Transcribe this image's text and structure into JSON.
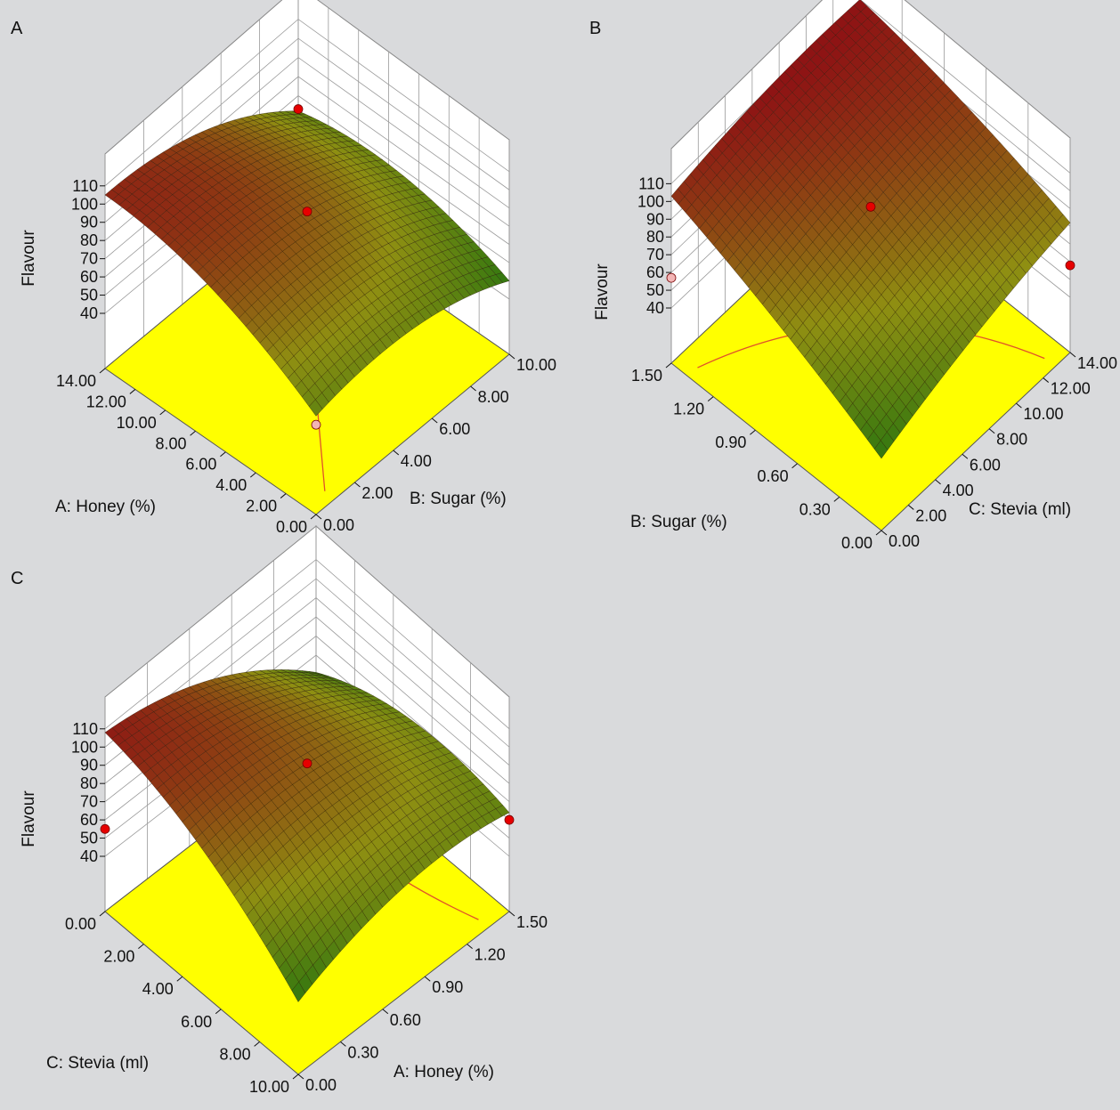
{
  "colors": {
    "background": "#d9dadc",
    "floor": "#ffff00",
    "surface_high": "#8e1414",
    "surface_low": "#0f6e0f",
    "point": "#e60000",
    "contour": "#e0522a"
  },
  "chart_data": [
    {
      "type": "surface3d",
      "panel_label": "A",
      "zlabel": "Flavour",
      "xlabel": "A: Honey (%)",
      "ylabel": "B: Sugar (%)",
      "x_ticks": [
        "0.00",
        "2.00",
        "4.00",
        "6.00",
        "8.00",
        "10.00"
      ],
      "y_ticks": [
        "0.00",
        "2.00",
        "4.00",
        "6.00",
        "8.00",
        "10.00",
        "12.00",
        "14.00"
      ],
      "z_ticks": [
        "40",
        "50",
        "60",
        "70",
        "80",
        "90",
        "100",
        "110"
      ],
      "xlim": [
        0,
        10
      ],
      "ylim": [
        0,
        14
      ],
      "zlim": [
        40,
        110
      ],
      "surface_corners": {
        "x0y0": 65,
        "x10y0": 50,
        "x0y14": 105,
        "x10y14": 62,
        "center": 92
      },
      "design_points": [
        {
          "x": 5,
          "y": 7,
          "z": 92
        },
        {
          "x": 10,
          "y": 14,
          "z": 63
        },
        {
          "x": 0,
          "y": 0,
          "z": 60,
          "hidden": true
        }
      ]
    },
    {
      "type": "surface3d",
      "panel_label": "B",
      "zlabel": "Flavour",
      "xlabel": "B: Sugar (%)",
      "ylabel": "C: Stevia (ml)",
      "x_ticks": [
        "0.00",
        "2.00",
        "4.00",
        "6.00",
        "8.00",
        "10.00",
        "12.00",
        "14.00"
      ],
      "y_ticks": [
        "0.00",
        "0.30",
        "0.60",
        "0.90",
        "1.20",
        "1.50"
      ],
      "z_ticks": [
        "40",
        "50",
        "60",
        "70",
        "80",
        "90",
        "100",
        "110"
      ],
      "xlim": [
        0,
        14
      ],
      "ylim": [
        0,
        1.5
      ],
      "zlim": [
        40,
        110
      ],
      "surface_corners": {
        "x0y0": 50,
        "x14y0": 82,
        "x0y1.5": 103,
        "x14y1.5": 110,
        "center": 94
      },
      "design_points": [
        {
          "x": 7,
          "y": 0.75,
          "z": 94
        },
        {
          "x": 14,
          "y": 0,
          "z": 58
        },
        {
          "x": 0,
          "y": 1.5,
          "z": 57,
          "hidden": true
        }
      ]
    },
    {
      "type": "surface3d",
      "panel_label": "C",
      "zlabel": "Flavour",
      "xlabel": "C: Stevia (ml)",
      "ylabel": "A: Honey (%)",
      "x_ticks": [
        "0.00",
        "0.30",
        "0.60",
        "0.90",
        "1.20",
        "1.50"
      ],
      "y_ticks": [
        "10.00",
        "8.00",
        "6.00",
        "4.00",
        "2.00",
        "0.00"
      ],
      "z_ticks": [
        "40",
        "50",
        "60",
        "70",
        "80",
        "90",
        "100",
        "110"
      ],
      "xlim": [
        0,
        1.5
      ],
      "ylim": [
        10,
        0
      ],
      "zlim": [
        40,
        110
      ],
      "surface_corners": {
        "x0y10": 50,
        "x1.5y10": 64,
        "x0y0": 108,
        "x1.5y0": 51,
        "center": 91
      },
      "design_points": [
        {
          "x": 0.75,
          "y": 5,
          "z": 91
        },
        {
          "x": 1.5,
          "y": 10,
          "z": 60
        },
        {
          "x": 0,
          "y": 0,
          "z": 55
        }
      ]
    }
  ]
}
